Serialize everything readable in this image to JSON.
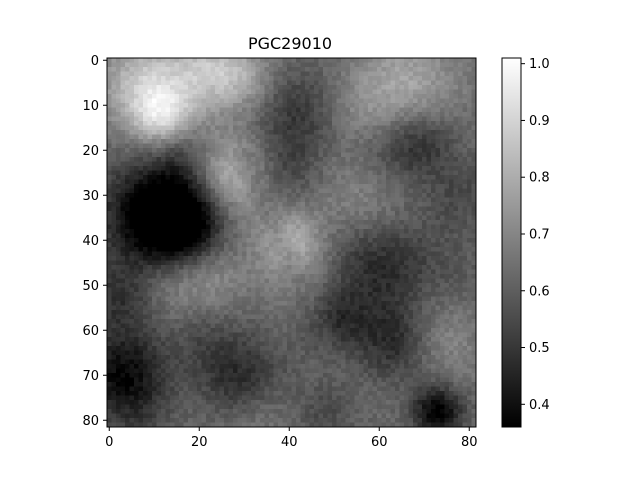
{
  "chart_data": {
    "type": "heatmap",
    "title": "PGC29010",
    "xlabel": "",
    "ylabel": "",
    "grid": false,
    "xlim": [
      -0.5,
      81.5
    ],
    "ylim": [
      81.5,
      -0.5
    ],
    "x_ticks": [
      "0",
      "20",
      "40",
      "60",
      "80"
    ],
    "y_ticks": [
      "0",
      "10",
      "20",
      "30",
      "40",
      "50",
      "60",
      "70",
      "80"
    ],
    "colormap": "gray",
    "colorbar": {
      "min": 0.36,
      "max": 1.01,
      "ticks": [
        "0.4",
        "0.5",
        "0.6",
        "0.7",
        "0.8",
        "0.9",
        "1.0"
      ]
    },
    "grid_size": [
      82,
      82
    ],
    "blobs": [
      [
        8,
        5,
        7,
        0.85
      ],
      [
        22,
        2,
        6,
        0.82
      ],
      [
        12,
        13,
        5,
        0.88
      ],
      [
        27,
        26,
        7,
        0.85
      ],
      [
        40,
        40,
        5,
        0.8
      ],
      [
        10,
        50,
        6,
        0.75
      ],
      [
        22,
        48,
        6,
        0.73
      ],
      [
        66,
        5,
        8,
        0.78
      ],
      [
        58,
        30,
        8,
        0.77
      ],
      [
        72,
        62,
        7,
        0.73
      ],
      [
        32,
        79,
        6,
        0.68
      ],
      [
        7,
        80,
        5,
        0.58
      ],
      [
        48,
        78,
        5,
        0.55
      ],
      [
        9,
        33,
        8,
        0.4
      ],
      [
        18,
        34,
        6,
        0.44
      ],
      [
        14,
        38,
        7,
        0.42
      ],
      [
        4,
        52,
        6,
        0.45
      ],
      [
        3,
        70,
        7,
        0.38
      ],
      [
        16,
        20,
        5,
        0.5
      ],
      [
        60,
        45,
        9,
        0.45
      ],
      [
        73,
        78,
        4,
        0.35
      ],
      [
        64,
        63,
        6,
        0.45
      ],
      [
        62,
        22,
        7,
        0.5
      ],
      [
        42,
        12,
        7,
        0.5
      ],
      [
        78,
        30,
        6,
        0.55
      ],
      [
        38,
        25,
        6,
        0.52
      ],
      [
        34,
        68,
        6,
        0.58
      ],
      [
        28,
        72,
        6,
        0.5
      ],
      [
        70,
        18,
        5,
        0.52
      ],
      [
        22,
        62,
        6,
        0.55
      ],
      [
        50,
        58,
        5,
        0.5
      ],
      [
        78,
        48,
        6,
        0.6
      ],
      [
        30,
        4,
        5,
        0.75
      ],
      [
        55,
        12,
        6,
        0.7
      ],
      [
        44,
        48,
        6,
        0.7
      ]
    ],
    "ridge_diagonal": {
      "from": [
        30,
        22
      ],
      "to": [
        56,
        80
      ],
      "level": 0.6
    },
    "base_level": 0.63,
    "noise": 0.03
  }
}
